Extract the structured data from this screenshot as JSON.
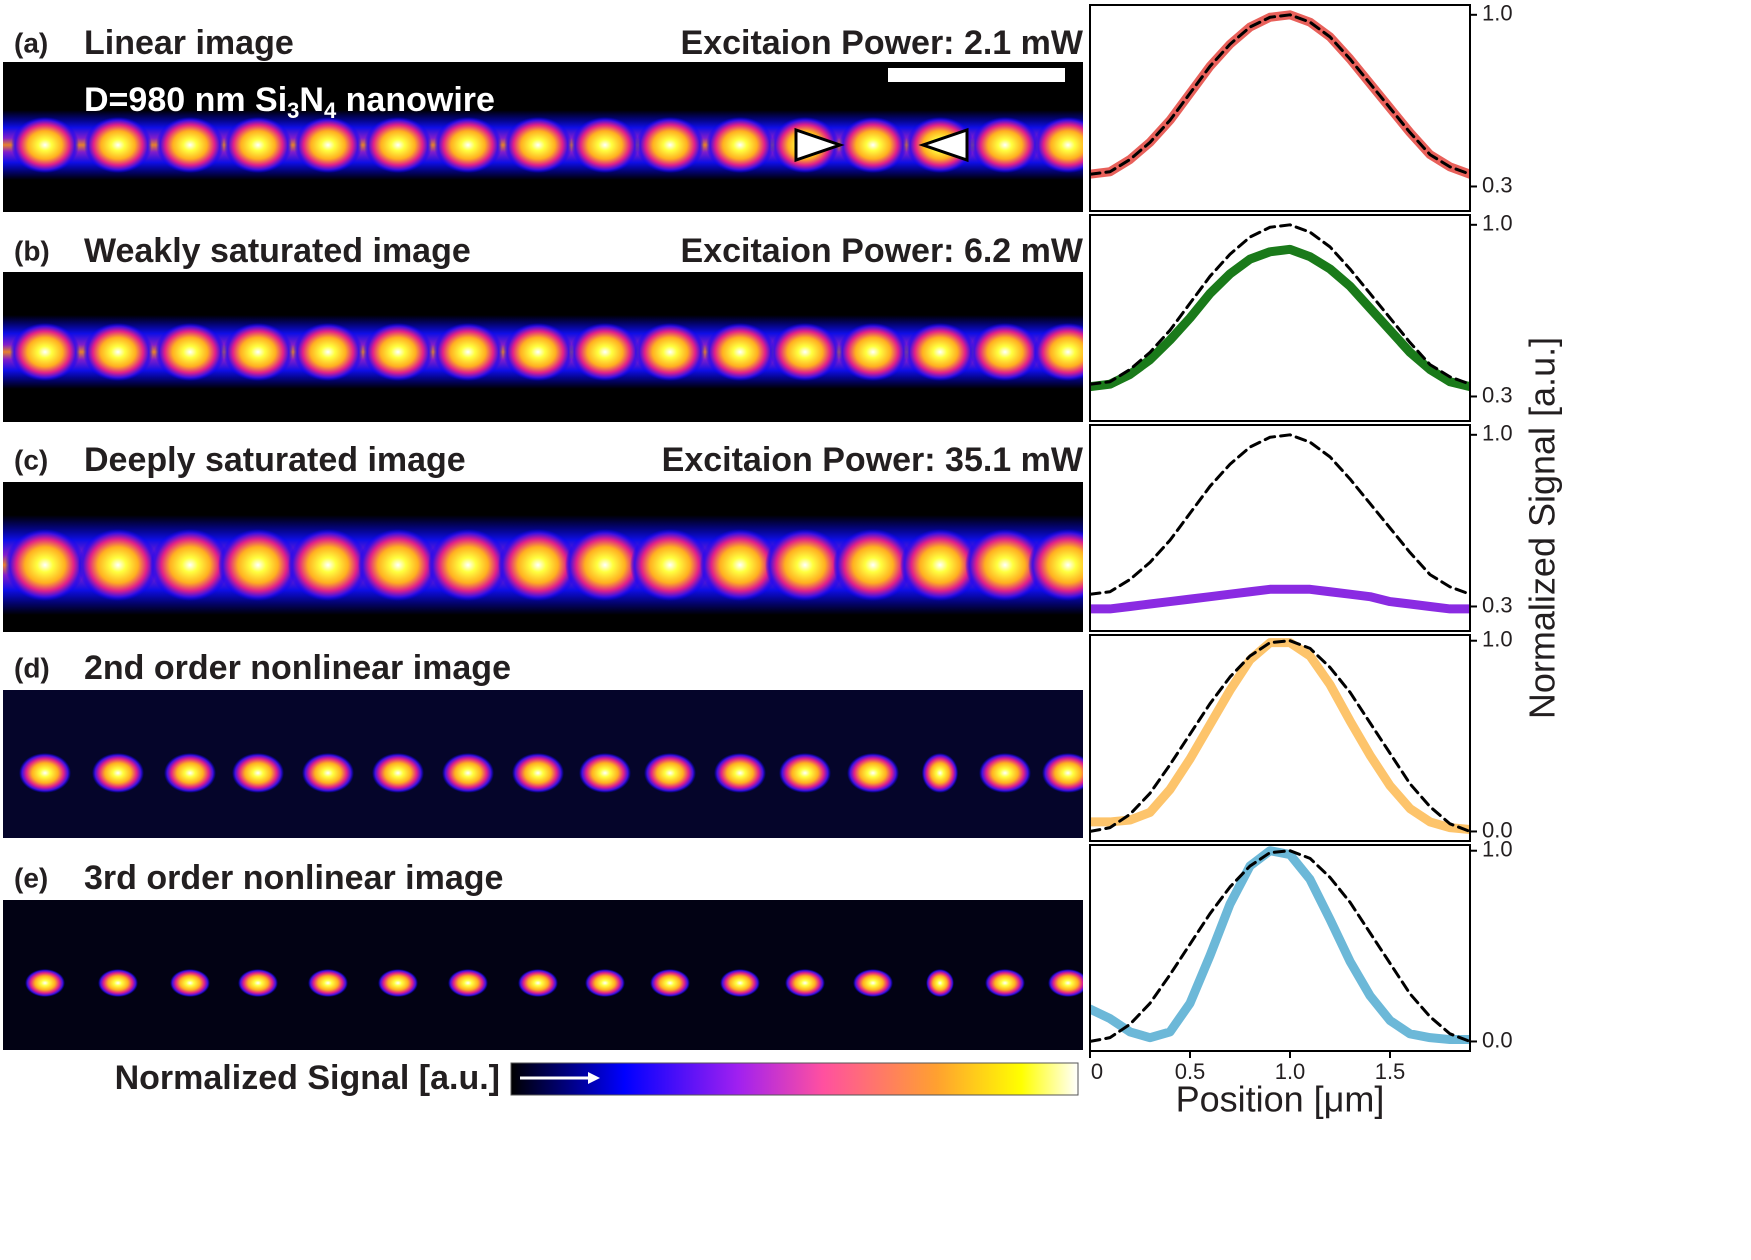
{
  "panels": [
    {
      "label": "(a)",
      "title": "Linear image",
      "power": "Excitaion Power: 2.1 mW",
      "subtitle": [
        "D=980 nm Si",
        "3",
        "N",
        "4",
        " nanowire"
      ]
    },
    {
      "label": "(b)",
      "title": "Weakly saturated image",
      "power": "Excitaion Power: 6.2 mW"
    },
    {
      "label": "(c)",
      "title": "Deeply saturated image",
      "power": "Excitaion Power: 35.1 mW"
    },
    {
      "label": "(d)",
      "title": "2nd order nonlinear image"
    },
    {
      "label": "(e)",
      "title": "3rd order nonlinear image"
    }
  ],
  "colorbar_label": "Normalized Signal [a.u.]",
  "chart_data": [
    {
      "type": "line",
      "xlim": [
        0,
        1.9
      ],
      "ylim": [
        0.2,
        1.04
      ],
      "yticks": [
        {
          "value": 1,
          "label": "1.0"
        },
        0.3
      ],
      "x": [
        0,
        0.1,
        0.2,
        0.3,
        0.4,
        0.5,
        0.6,
        0.7,
        0.8,
        0.9,
        1,
        1.1,
        1.2,
        1.3,
        1.4,
        1.5,
        1.6,
        1.7,
        1.8,
        1.9
      ],
      "series": [
        {
          "color": "#e8605a",
          "values": [
            0.35,
            0.36,
            0.41,
            0.48,
            0.57,
            0.68,
            0.79,
            0.88,
            0.95,
            0.99,
            1.0,
            0.97,
            0.91,
            0.82,
            0.72,
            0.62,
            0.52,
            0.43,
            0.38,
            0.35
          ]
        },
        {
          "color": "#000000",
          "dashed": true,
          "values": [
            0.35,
            0.36,
            0.41,
            0.48,
            0.57,
            0.68,
            0.79,
            0.88,
            0.95,
            0.99,
            1.0,
            0.97,
            0.91,
            0.82,
            0.72,
            0.62,
            0.52,
            0.43,
            0.38,
            0.35
          ]
        }
      ]
    },
    {
      "type": "line",
      "xlim": [
        0,
        1.9
      ],
      "ylim": [
        0.2,
        1.04
      ],
      "yticks": [
        {
          "value": 1,
          "label": "1.0"
        },
        0.3
      ],
      "x": [
        0,
        0.1,
        0.2,
        0.3,
        0.4,
        0.5,
        0.6,
        0.7,
        0.8,
        0.9,
        1,
        1.1,
        1.2,
        1.3,
        1.4,
        1.5,
        1.6,
        1.7,
        1.8,
        1.9
      ],
      "series": [
        {
          "color": "#1a7a1a",
          "values": [
            0.34,
            0.35,
            0.39,
            0.45,
            0.53,
            0.62,
            0.72,
            0.8,
            0.86,
            0.89,
            0.9,
            0.87,
            0.82,
            0.75,
            0.66,
            0.57,
            0.48,
            0.41,
            0.36,
            0.34
          ]
        },
        {
          "color": "#000000",
          "dashed": true,
          "values": [
            0.35,
            0.36,
            0.41,
            0.48,
            0.57,
            0.68,
            0.79,
            0.88,
            0.95,
            0.99,
            1.0,
            0.97,
            0.91,
            0.82,
            0.72,
            0.62,
            0.52,
            0.43,
            0.38,
            0.35
          ]
        }
      ]
    },
    {
      "type": "line",
      "xlim": [
        0,
        1.9
      ],
      "ylim": [
        0.2,
        1.04
      ],
      "yticks": [
        {
          "value": 1,
          "label": "1.0"
        },
        0.3
      ],
      "ylabel": "Normalized Signal [a.u.]",
      "x": [
        0,
        0.1,
        0.2,
        0.3,
        0.4,
        0.5,
        0.6,
        0.7,
        0.8,
        0.9,
        1,
        1.1,
        1.2,
        1.3,
        1.4,
        1.5,
        1.6,
        1.7,
        1.8,
        1.9
      ],
      "series": [
        {
          "color": "#8a2be2",
          "values": [
            0.29,
            0.29,
            0.3,
            0.31,
            0.32,
            0.33,
            0.34,
            0.35,
            0.36,
            0.37,
            0.37,
            0.37,
            0.36,
            0.35,
            0.34,
            0.32,
            0.31,
            0.3,
            0.29,
            0.29
          ]
        },
        {
          "color": "#000000",
          "dashed": true,
          "values": [
            0.35,
            0.36,
            0.41,
            0.48,
            0.57,
            0.68,
            0.79,
            0.88,
            0.95,
            0.99,
            1.0,
            0.97,
            0.91,
            0.82,
            0.72,
            0.62,
            0.52,
            0.43,
            0.38,
            0.35
          ]
        }
      ]
    },
    {
      "type": "line",
      "xlim": [
        0,
        1.9
      ],
      "ylim": [
        -0.05,
        1.03
      ],
      "yticks": [
        {
          "value": 1,
          "label": "1.0"
        },
        {
          "value": 0,
          "label": "0.0"
        }
      ],
      "x": [
        0,
        0.1,
        0.2,
        0.3,
        0.4,
        0.5,
        0.6,
        0.7,
        0.8,
        0.9,
        1,
        1.1,
        1.2,
        1.3,
        1.4,
        1.5,
        1.6,
        1.7,
        1.8,
        1.9
      ],
      "series": [
        {
          "color": "#fdc46b",
          "values": [
            0.05,
            0.05,
            0.06,
            0.1,
            0.22,
            0.38,
            0.56,
            0.74,
            0.9,
            0.99,
            0.99,
            0.92,
            0.77,
            0.58,
            0.4,
            0.24,
            0.12,
            0.05,
            0.02,
            0.01
          ]
        },
        {
          "color": "#000000",
          "dashed": true,
          "values": [
            0.0,
            0.02,
            0.09,
            0.2,
            0.35,
            0.51,
            0.67,
            0.81,
            0.92,
            0.99,
            1.0,
            0.96,
            0.86,
            0.73,
            0.57,
            0.41,
            0.25,
            0.13,
            0.04,
            0.0
          ]
        }
      ]
    },
    {
      "type": "line",
      "xlim": [
        0,
        1.9
      ],
      "ylim": [
        -0.05,
        1.03
      ],
      "yticks": [
        {
          "value": 1,
          "label": "1.0"
        },
        {
          "value": 0,
          "label": "0.0"
        }
      ],
      "xticks": [
        0,
        0.5,
        {
          "value": 1,
          "label": "1.0"
        },
        1.5
      ],
      "xlabel": "Position [μm]",
      "x": [
        0,
        0.1,
        0.2,
        0.3,
        0.4,
        0.5,
        0.6,
        0.7,
        0.8,
        0.9,
        1,
        1.1,
        1.2,
        1.3,
        1.4,
        1.5,
        1.6,
        1.7,
        1.8,
        1.9
      ],
      "series": [
        {
          "color": "#6cb8d8",
          "values": [
            0.17,
            0.12,
            0.05,
            0.02,
            0.05,
            0.2,
            0.45,
            0.72,
            0.92,
            1.0,
            0.98,
            0.85,
            0.64,
            0.42,
            0.24,
            0.11,
            0.04,
            0.02,
            0.01,
            0.01
          ]
        },
        {
          "color": "#000000",
          "dashed": true,
          "values": [
            0.0,
            0.02,
            0.09,
            0.2,
            0.35,
            0.51,
            0.67,
            0.81,
            0.92,
            0.99,
            1.0,
            0.96,
            0.86,
            0.73,
            0.57,
            0.41,
            0.25,
            0.13,
            0.04,
            0.0
          ]
        }
      ]
    }
  ]
}
